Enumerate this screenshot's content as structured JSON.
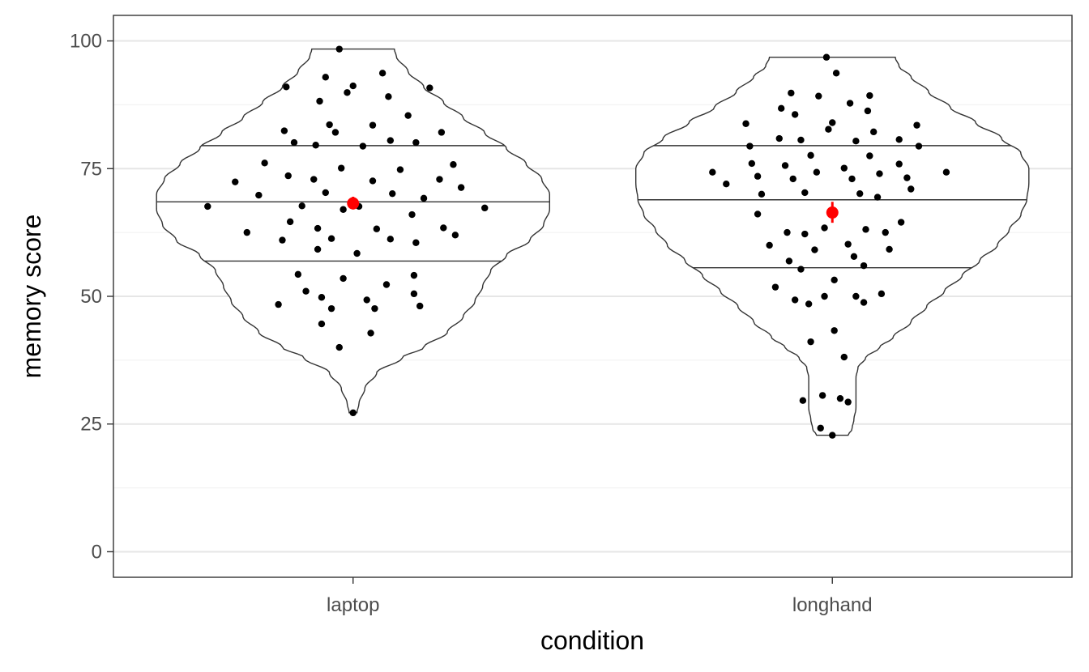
{
  "chart_data": {
    "type": "violin",
    "xlabel": "condition",
    "ylabel": "memory score",
    "ylim": [
      -5,
      105
    ],
    "yticks": [
      0,
      25,
      50,
      75,
      100
    ],
    "grid": true,
    "categories": [
      "laptop",
      "longhand"
    ],
    "groups": [
      {
        "name": "laptop",
        "mean": 68.2,
        "ci": [
          67.0,
          69.5
        ],
        "quantiles": [
          56.9,
          68.5,
          79.5
        ],
        "range": [
          27.2,
          98.4
        ],
        "density": [
          [
            27.2,
            0.02
          ],
          [
            29.0,
            0.03
          ],
          [
            32.0,
            0.06
          ],
          [
            35.0,
            0.12
          ],
          [
            38.0,
            0.25
          ],
          [
            40.0,
            0.36
          ],
          [
            43.0,
            0.48
          ],
          [
            46.0,
            0.56
          ],
          [
            49.0,
            0.62
          ],
          [
            52.0,
            0.66
          ],
          [
            55.0,
            0.7
          ],
          [
            58.0,
            0.78
          ],
          [
            61.0,
            0.9
          ],
          [
            64.0,
            0.97
          ],
          [
            67.0,
            1.0
          ],
          [
            70.0,
            1.0
          ],
          [
            73.0,
            0.96
          ],
          [
            76.0,
            0.88
          ],
          [
            79.0,
            0.78
          ],
          [
            82.0,
            0.67
          ],
          [
            85.0,
            0.56
          ],
          [
            88.0,
            0.46
          ],
          [
            91.0,
            0.36
          ],
          [
            94.0,
            0.28
          ],
          [
            97.0,
            0.22
          ],
          [
            98.4,
            0.21
          ]
        ],
        "points": [
          [
            0.26,
            67.6
          ],
          [
            0.4,
            72.4
          ],
          [
            0.46,
            62.5
          ],
          [
            0.52,
            69.8
          ],
          [
            0.55,
            76.1
          ],
          [
            0.62,
            48.4
          ],
          [
            0.64,
            61.0
          ],
          [
            0.65,
            82.4
          ],
          [
            0.66,
            91.0
          ],
          [
            0.67,
            73.6
          ],
          [
            0.68,
            64.6
          ],
          [
            0.7,
            80.1
          ],
          [
            0.72,
            54.3
          ],
          [
            0.74,
            67.7
          ],
          [
            0.76,
            51.0
          ],
          [
            0.8,
            72.9
          ],
          [
            0.81,
            79.6
          ],
          [
            0.82,
            63.3
          ],
          [
            0.82,
            59.2
          ],
          [
            0.83,
            88.2
          ],
          [
            0.84,
            44.6
          ],
          [
            0.84,
            49.8
          ],
          [
            0.86,
            70.3
          ],
          [
            0.86,
            92.9
          ],
          [
            0.88,
            83.6
          ],
          [
            0.89,
            61.3
          ],
          [
            0.89,
            47.6
          ],
          [
            0.91,
            82.1
          ],
          [
            0.93,
            40.0
          ],
          [
            0.93,
            98.4
          ],
          [
            0.94,
            75.1
          ],
          [
            0.95,
            53.5
          ],
          [
            0.95,
            67.0
          ],
          [
            0.97,
            89.9
          ],
          [
            1.0,
            91.2
          ],
          [
            1.0,
            27.2
          ],
          [
            1.02,
            58.4
          ],
          [
            1.03,
            67.6
          ],
          [
            1.05,
            79.4
          ],
          [
            1.07,
            49.3
          ],
          [
            1.09,
            42.8
          ],
          [
            1.1,
            72.6
          ],
          [
            1.1,
            83.5
          ],
          [
            1.11,
            47.6
          ],
          [
            1.12,
            63.2
          ],
          [
            1.15,
            93.7
          ],
          [
            1.17,
            52.3
          ],
          [
            1.18,
            89.1
          ],
          [
            1.19,
            61.2
          ],
          [
            1.19,
            80.5
          ],
          [
            1.2,
            70.1
          ],
          [
            1.24,
            74.8
          ],
          [
            1.28,
            85.4
          ],
          [
            1.3,
            66.0
          ],
          [
            1.31,
            54.1
          ],
          [
            1.31,
            50.5
          ],
          [
            1.32,
            60.5
          ],
          [
            1.32,
            80.1
          ],
          [
            1.34,
            48.1
          ],
          [
            1.36,
            69.2
          ],
          [
            1.39,
            90.8
          ],
          [
            1.44,
            72.9
          ],
          [
            1.45,
            82.1
          ],
          [
            1.46,
            63.4
          ],
          [
            1.51,
            75.8
          ],
          [
            1.52,
            62.0
          ],
          [
            1.55,
            71.3
          ],
          [
            1.67,
            67.3
          ]
        ]
      },
      {
        "name": "longhand",
        "mean": 66.4,
        "ci": [
          64.4,
          68.5
        ],
        "quantiles": [
          55.6,
          68.9,
          79.5
        ],
        "range": [
          22.8,
          96.8
        ],
        "density": [
          [
            22.8,
            0.08
          ],
          [
            24.0,
            0.1
          ],
          [
            26.0,
            0.11
          ],
          [
            28.0,
            0.12
          ],
          [
            31.0,
            0.12
          ],
          [
            34.0,
            0.12
          ],
          [
            36.0,
            0.13
          ],
          [
            38.0,
            0.17
          ],
          [
            40.0,
            0.24
          ],
          [
            42.0,
            0.31
          ],
          [
            45.0,
            0.4
          ],
          [
            48.0,
            0.48
          ],
          [
            51.0,
            0.57
          ],
          [
            54.0,
            0.66
          ],
          [
            57.0,
            0.75
          ],
          [
            60.0,
            0.84
          ],
          [
            63.0,
            0.9
          ],
          [
            66.0,
            0.96
          ],
          [
            69.0,
            0.99
          ],
          [
            72.0,
            1.0
          ],
          [
            75.0,
            1.0
          ],
          [
            78.0,
            0.96
          ],
          [
            81.0,
            0.86
          ],
          [
            84.0,
            0.73
          ],
          [
            87.0,
            0.6
          ],
          [
            90.0,
            0.49
          ],
          [
            93.0,
            0.4
          ],
          [
            95.0,
            0.34
          ],
          [
            96.8,
            0.32
          ]
        ],
        "points": [
          [
            0.39,
            74.3
          ],
          [
            0.46,
            72.0
          ],
          [
            0.56,
            83.8
          ],
          [
            0.58,
            79.4
          ],
          [
            0.59,
            76.0
          ],
          [
            0.62,
            73.5
          ],
          [
            0.62,
            66.1
          ],
          [
            0.64,
            70.0
          ],
          [
            0.68,
            60.0
          ],
          [
            0.71,
            51.8
          ],
          [
            0.73,
            80.9
          ],
          [
            0.74,
            86.8
          ],
          [
            0.76,
            75.6
          ],
          [
            0.77,
            62.5
          ],
          [
            0.78,
            56.9
          ],
          [
            0.79,
            89.8
          ],
          [
            0.8,
            73.0
          ],
          [
            0.81,
            85.6
          ],
          [
            0.81,
            49.3
          ],
          [
            0.84,
            80.6
          ],
          [
            0.84,
            55.3
          ],
          [
            0.85,
            29.6
          ],
          [
            0.86,
            62.2
          ],
          [
            0.86,
            70.3
          ],
          [
            0.88,
            48.5
          ],
          [
            0.89,
            77.6
          ],
          [
            0.89,
            41.1
          ],
          [
            0.91,
            59.1
          ],
          [
            0.92,
            74.3
          ],
          [
            0.93,
            89.2
          ],
          [
            0.94,
            24.2
          ],
          [
            0.95,
            30.6
          ],
          [
            0.96,
            50.0
          ],
          [
            0.96,
            63.4
          ],
          [
            0.97,
            96.8
          ],
          [
            0.98,
            82.7
          ],
          [
            1.0,
            84.0
          ],
          [
            1.0,
            22.8
          ],
          [
            1.01,
            53.2
          ],
          [
            1.01,
            43.3
          ],
          [
            1.02,
            93.7
          ],
          [
            1.04,
            30.0
          ],
          [
            1.06,
            38.1
          ],
          [
            1.06,
            75.1
          ],
          [
            1.08,
            29.3
          ],
          [
            1.08,
            60.2
          ],
          [
            1.09,
            87.8
          ],
          [
            1.1,
            73.0
          ],
          [
            1.11,
            57.8
          ],
          [
            1.12,
            80.4
          ],
          [
            1.12,
            50.0
          ],
          [
            1.14,
            70.1
          ],
          [
            1.16,
            48.8
          ],
          [
            1.16,
            56.0
          ],
          [
            1.17,
            63.1
          ],
          [
            1.18,
            86.3
          ],
          [
            1.19,
            89.3
          ],
          [
            1.19,
            77.5
          ],
          [
            1.21,
            82.2
          ],
          [
            1.23,
            69.4
          ],
          [
            1.24,
            74.0
          ],
          [
            1.25,
            50.5
          ],
          [
            1.27,
            62.5
          ],
          [
            1.29,
            59.2
          ],
          [
            1.34,
            75.9
          ],
          [
            1.34,
            80.7
          ],
          [
            1.35,
            64.5
          ],
          [
            1.38,
            73.2
          ],
          [
            1.4,
            71.0
          ],
          [
            1.43,
            83.5
          ],
          [
            1.44,
            79.4
          ],
          [
            1.58,
            74.3
          ]
        ]
      }
    ]
  }
}
